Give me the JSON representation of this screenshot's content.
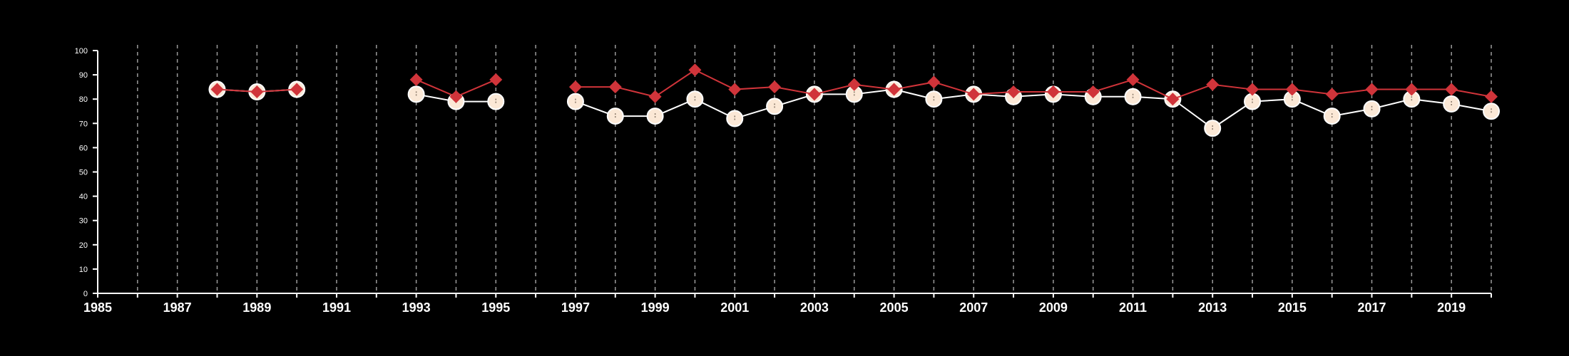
{
  "chart_data": {
    "type": "line",
    "title": "",
    "xlabel": "",
    "ylabel": "",
    "xlim": [
      1985,
      2020
    ],
    "ylim": [
      0,
      100
    ],
    "x_ticks": [
      1985,
      1987,
      1989,
      1991,
      1993,
      1995,
      1997,
      1999,
      2001,
      2003,
      2005,
      2007,
      2009,
      2011,
      2013,
      2015,
      2017,
      2019
    ],
    "x_tick_labels": [
      "1985",
      "1987",
      "1989",
      "1991",
      "1993",
      "1995",
      "1997",
      "1999",
      "2001",
      "2003",
      "2005",
      "2007",
      "2009",
      "2011",
      "2013",
      "2015",
      "2017",
      "2019"
    ],
    "y_ticks": [
      0,
      10,
      20,
      30,
      40,
      50,
      60,
      70,
      80,
      90,
      100
    ],
    "y_tick_labels": [
      "0",
      "10",
      "20",
      "30",
      "40",
      "50",
      "60",
      "70",
      "80",
      "90",
      "100"
    ],
    "grid": "vertical dashed lines at every year",
    "legend": "none",
    "x": [
      1988,
      1989,
      1990,
      1993,
      1994,
      1995,
      1997,
      1998,
      1999,
      2000,
      2001,
      2002,
      2003,
      2004,
      2005,
      2006,
      2007,
      2008,
      2009,
      2010,
      2011,
      2012,
      2013,
      2014,
      2015,
      2016,
      2017,
      2018,
      2019,
      2020
    ],
    "series": [
      {
        "marker": "diamond",
        "color": "#d0343a",
        "values": [
          84,
          83,
          84,
          88,
          81,
          88,
          85,
          85,
          81,
          92,
          84,
          85,
          82,
          86,
          84,
          87,
          82,
          83,
          83,
          83,
          88,
          80,
          86,
          84,
          84,
          82,
          84,
          84,
          84,
          81
        ]
      },
      {
        "marker": "circle",
        "color": "#fbe8d6",
        "values": [
          84,
          83,
          84,
          82,
          79,
          79,
          79,
          73,
          73,
          80,
          72,
          77,
          82,
          82,
          84,
          80,
          82,
          81,
          82,
          81,
          81,
          80,
          68,
          79,
          80,
          73,
          76,
          80,
          78,
          75
        ]
      }
    ]
  }
}
